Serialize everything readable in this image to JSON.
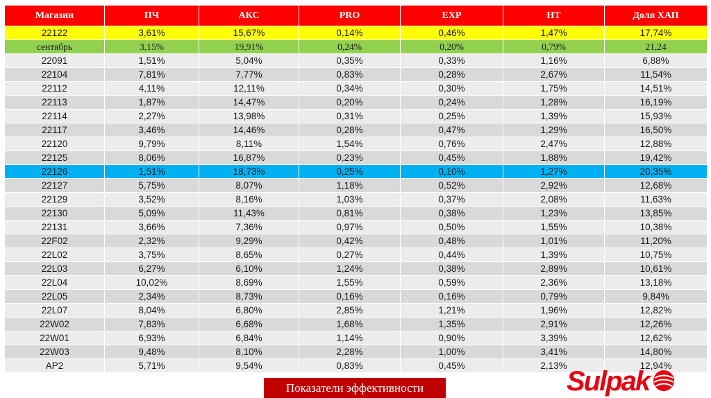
{
  "table": {
    "headers": [
      "Магазин",
      "ПЧ",
      "АКС",
      "PRO",
      "EXP",
      "HT",
      "Доля ХАП"
    ],
    "rows": [
      {
        "style": "yellow",
        "cells": [
          "22122",
          "3,61%",
          "15,67%",
          "0,14%",
          "0,46%",
          "1,47%",
          "17,74%"
        ]
      },
      {
        "style": "green",
        "cells": [
          "сентябрь",
          "3,15%",
          "19,91%",
          "0,24%",
          "0,20%",
          "0,79%",
          "21,24"
        ]
      },
      {
        "style": "",
        "cells": [
          "22091",
          "1,51%",
          "5,04%",
          "0,35%",
          "0,33%",
          "1,16%",
          "6,88%"
        ]
      },
      {
        "style": "",
        "cells": [
          "22104",
          "7,81%",
          "7,77%",
          "0,83%",
          "0,28%",
          "2,67%",
          "11,54%"
        ]
      },
      {
        "style": "",
        "cells": [
          "22112",
          "4,11%",
          "12,11%",
          "0,34%",
          "0,30%",
          "1,75%",
          "14,51%"
        ]
      },
      {
        "style": "",
        "cells": [
          "22113",
          "1,87%",
          "14,47%",
          "0,20%",
          "0,24%",
          "1,28%",
          "16,19%"
        ]
      },
      {
        "style": "",
        "cells": [
          "22114",
          "2,27%",
          "13,98%",
          "0,31%",
          "0,25%",
          "1,39%",
          "15,93%"
        ]
      },
      {
        "style": "",
        "cells": [
          "22117",
          "3,46%",
          "14,46%",
          "0,28%",
          "0,47%",
          "1,29%",
          "16,50%"
        ]
      },
      {
        "style": "",
        "cells": [
          "22120",
          "9,79%",
          "8,11%",
          "1,54%",
          "0,76%",
          "2,47%",
          "12,88%"
        ]
      },
      {
        "style": "",
        "cells": [
          "22125",
          "8,06%",
          "16,87%",
          "0,23%",
          "0,45%",
          "1,88%",
          "19,42%"
        ]
      },
      {
        "style": "blue",
        "cells": [
          "22126",
          "1,51%",
          "18,73%",
          "0,25%",
          "0,10%",
          "1,27%",
          "20,35%"
        ]
      },
      {
        "style": "",
        "cells": [
          "22127",
          "5,75%",
          "8,07%",
          "1,18%",
          "0,52%",
          "2,92%",
          "12,68%"
        ]
      },
      {
        "style": "",
        "cells": [
          "22129",
          "3,52%",
          "8,16%",
          "1,03%",
          "0,37%",
          "2,08%",
          "11,63%"
        ]
      },
      {
        "style": "",
        "cells": [
          "22130",
          "5,09%",
          "11,43%",
          "0,81%",
          "0,38%",
          "1,23%",
          "13,85%"
        ]
      },
      {
        "style": "",
        "cells": [
          "22131",
          "3,66%",
          "7,36%",
          "0,97%",
          "0,50%",
          "1,55%",
          "10,38%"
        ]
      },
      {
        "style": "",
        "cells": [
          "22F02",
          "2,32%",
          "9,29%",
          "0,42%",
          "0,48%",
          "1,01%",
          "11,20%"
        ]
      },
      {
        "style": "",
        "cells": [
          "22L02",
          "3,75%",
          "8,65%",
          "0,27%",
          "0,44%",
          "1,39%",
          "10,75%"
        ]
      },
      {
        "style": "",
        "cells": [
          "22L03",
          "6,27%",
          "6,10%",
          "1,24%",
          "0,38%",
          "2,89%",
          "10,61%"
        ]
      },
      {
        "style": "",
        "cells": [
          "22L04",
          "10,02%",
          "8,69%",
          "1,55%",
          "0,59%",
          "2,36%",
          "13,18%"
        ]
      },
      {
        "style": "",
        "cells": [
          "22L05",
          "2,34%",
          "8,73%",
          "0,16%",
          "0,16%",
          "0,79%",
          "9,84%"
        ]
      },
      {
        "style": "",
        "cells": [
          "22L07",
          "8,04%",
          "6,80%",
          "2,85%",
          "1,21%",
          "1,96%",
          "12,82%"
        ]
      },
      {
        "style": "",
        "cells": [
          "22W02",
          "7,83%",
          "6,68%",
          "1,68%",
          "1,35%",
          "2,91%",
          "12,26%"
        ]
      },
      {
        "style": "",
        "cells": [
          "22W01",
          "6,93%",
          "6,84%",
          "1,14%",
          "0,90%",
          "3,39%",
          "12,62%"
        ]
      },
      {
        "style": "",
        "cells": [
          "22W03",
          "9,48%",
          "8,10%",
          "2,28%",
          "1,00%",
          "3,41%",
          "14,80%"
        ]
      },
      {
        "style": "",
        "cells": [
          "AP2",
          "5,71%",
          "9,54%",
          "0,83%",
          "0,45%",
          "2,13%",
          "12,94%"
        ]
      }
    ]
  },
  "footer": {
    "label": "Показатели эффективности"
  },
  "logo": {
    "text": "Sulpak",
    "mark_icon": "sulpak-logo-mark"
  },
  "colors": {
    "header": "#ff0000",
    "highlight_yellow": "#ffff00",
    "highlight_green": "#92d050",
    "highlight_blue": "#00b0f0",
    "row_light": "#ececec",
    "row_dark": "#d9d9d9",
    "footer": "#c00000",
    "logo": "#e30613"
  }
}
